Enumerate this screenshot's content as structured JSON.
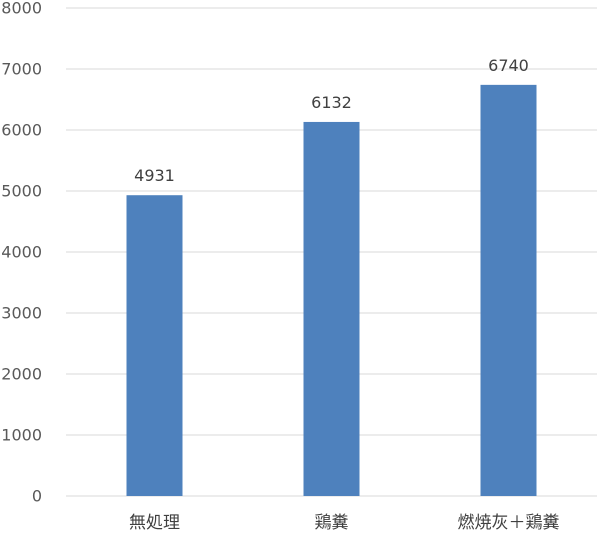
{
  "chart_data": {
    "type": "bar",
    "categories": [
      "無処理",
      "鶏糞",
      "燃焼灰＋鶏糞"
    ],
    "values": [
      4931,
      6132,
      6740
    ],
    "data_labels": [
      "4931",
      "6132",
      "6740"
    ],
    "yticks": [
      0,
      1000,
      2000,
      3000,
      4000,
      5000,
      6000,
      7000,
      8000
    ],
    "ytick_labels": [
      "0",
      "1000",
      "2000",
      "3000",
      "4000",
      "5000",
      "6000",
      "7000",
      "8000"
    ],
    "ylim": [
      0,
      8000
    ],
    "grid": true,
    "legend": "none",
    "title": "",
    "xlabel": "",
    "ylabel": "",
    "colors": {
      "bar": "#4e81bd",
      "grid": "#d9d9d9"
    }
  }
}
